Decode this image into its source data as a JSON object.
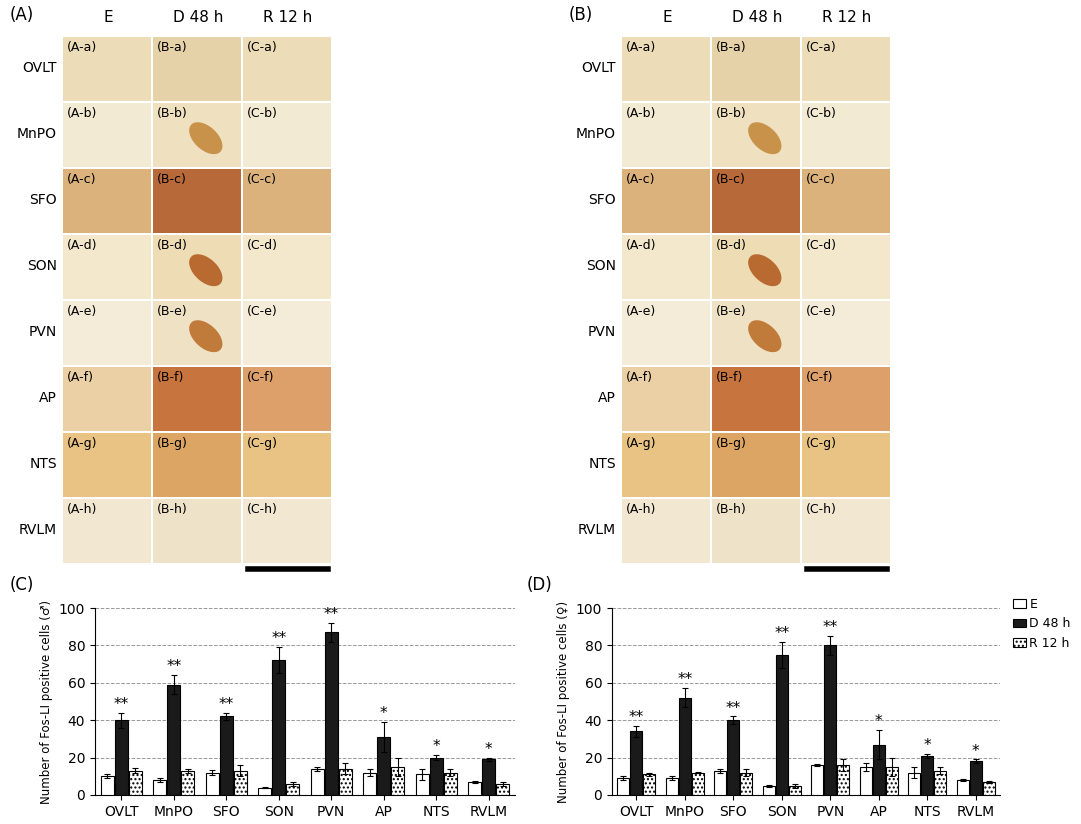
{
  "image_panels": [
    {
      "label": "(A)",
      "columns": [
        "E",
        "D 48 h",
        "R 12 h"
      ],
      "rows": [
        "OVLT",
        "MnPO",
        "SFO",
        "SON",
        "PVN",
        "AP",
        "NTS",
        "RVLM"
      ],
      "cells": [
        [
          "(A-a)",
          "(B-a)",
          "(C-a)"
        ],
        [
          "(A-b)",
          "(B-b)",
          "(C-b)"
        ],
        [
          "(A-c)",
          "(B-c)",
          "(C-c)"
        ],
        [
          "(A-d)",
          "(B-d)",
          "(C-d)"
        ],
        [
          "(A-e)",
          "(B-e)",
          "(C-e)"
        ],
        [
          "(A-f)",
          "(B-f)",
          "(C-f)"
        ],
        [
          "(A-g)",
          "(B-g)",
          "(C-g)"
        ],
        [
          "(A-h)",
          "(B-h)",
          "(C-h)"
        ]
      ]
    },
    {
      "label": "(B)",
      "columns": [
        "E",
        "D 48 h",
        "R 12 h"
      ],
      "rows": [
        "OVLT",
        "MnPO",
        "SFO",
        "SON",
        "PVN",
        "AP",
        "NTS",
        "RVLM"
      ],
      "cells": [
        [
          "(A-a)",
          "(B-a)",
          "(C-a)"
        ],
        [
          "(A-b)",
          "(B-b)",
          "(C-b)"
        ],
        [
          "(A-c)",
          "(B-c)",
          "(C-c)"
        ],
        [
          "(A-d)",
          "(B-d)",
          "(C-d)"
        ],
        [
          "(A-e)",
          "(B-e)",
          "(C-e)"
        ],
        [
          "(A-f)",
          "(B-f)",
          "(C-f)"
        ],
        [
          "(A-g)",
          "(B-g)",
          "(C-g)"
        ],
        [
          "(A-h)",
          "(B-h)",
          "(C-h)"
        ]
      ]
    }
  ],
  "chart_data": [
    {
      "type": "bar",
      "panel": "(C)",
      "ylabel": "Number of Fos-LI positive cells (♂)",
      "categories": [
        "OVLT",
        "MnPO",
        "SFO",
        "SON",
        "PVN",
        "AP",
        "NTS",
        "RVLM"
      ],
      "series": [
        {
          "name": "E",
          "color": "#ffffff",
          "values": [
            10,
            8,
            12,
            4,
            14,
            12,
            11,
            7
          ],
          "errors": [
            1,
            1,
            1.5,
            0.5,
            1,
            2,
            3,
            0.5
          ]
        },
        {
          "name": "D 48 h",
          "color": "#1a1a1a",
          "values": [
            40,
            59,
            42,
            72,
            87,
            31,
            20,
            19
          ],
          "errors": [
            4,
            5,
            2,
            7,
            5,
            8,
            1.5,
            1
          ],
          "significance": [
            "**",
            "**",
            "**",
            "**",
            "**",
            "*",
            "*",
            "*"
          ]
        },
        {
          "name": "R 12 h",
          "color": "#ffffff",
          "values": [
            13,
            13,
            13,
            6,
            14,
            15,
            12,
            6
          ],
          "errors": [
            1.5,
            1,
            3,
            1,
            3,
            5,
            2,
            1
          ]
        }
      ],
      "ylim": [
        0,
        100
      ],
      "yticks": [
        0,
        20,
        40,
        60,
        80,
        100
      ],
      "grid": true
    },
    {
      "type": "bar",
      "panel": "(D)",
      "ylabel": "Number of Fos-LI positive cells (♀)",
      "categories": [
        "OVLT",
        "MnPO",
        "SFO",
        "SON",
        "PVN",
        "AP",
        "NTS",
        "RVLM"
      ],
      "series": [
        {
          "name": "E",
          "color": "#ffffff",
          "values": [
            9,
            9,
            13,
            5,
            16,
            15,
            12,
            8
          ],
          "errors": [
            1,
            1,
            1,
            0.5,
            0.5,
            2,
            3,
            0.5
          ]
        },
        {
          "name": "D 48 h",
          "color": "#1a1a1a",
          "values": [
            34,
            52,
            40,
            75,
            80,
            27,
            21,
            18
          ],
          "errors": [
            3,
            5,
            2,
            7,
            5,
            8,
            1,
            1
          ],
          "significance": [
            "**",
            "**",
            "**",
            "**",
            "**",
            "*",
            "*",
            "*"
          ]
        },
        {
          "name": "R 12 h",
          "color": "#ffffff",
          "values": [
            11,
            12,
            12,
            5,
            16,
            15,
            13,
            7
          ],
          "errors": [
            1,
            0.5,
            2,
            1,
            3,
            5,
            2,
            0.5
          ]
        }
      ],
      "ylim": [
        0,
        100
      ],
      "yticks": [
        0,
        20,
        40,
        60,
        80,
        100
      ],
      "grid": true,
      "legend": "upper right"
    }
  ]
}
